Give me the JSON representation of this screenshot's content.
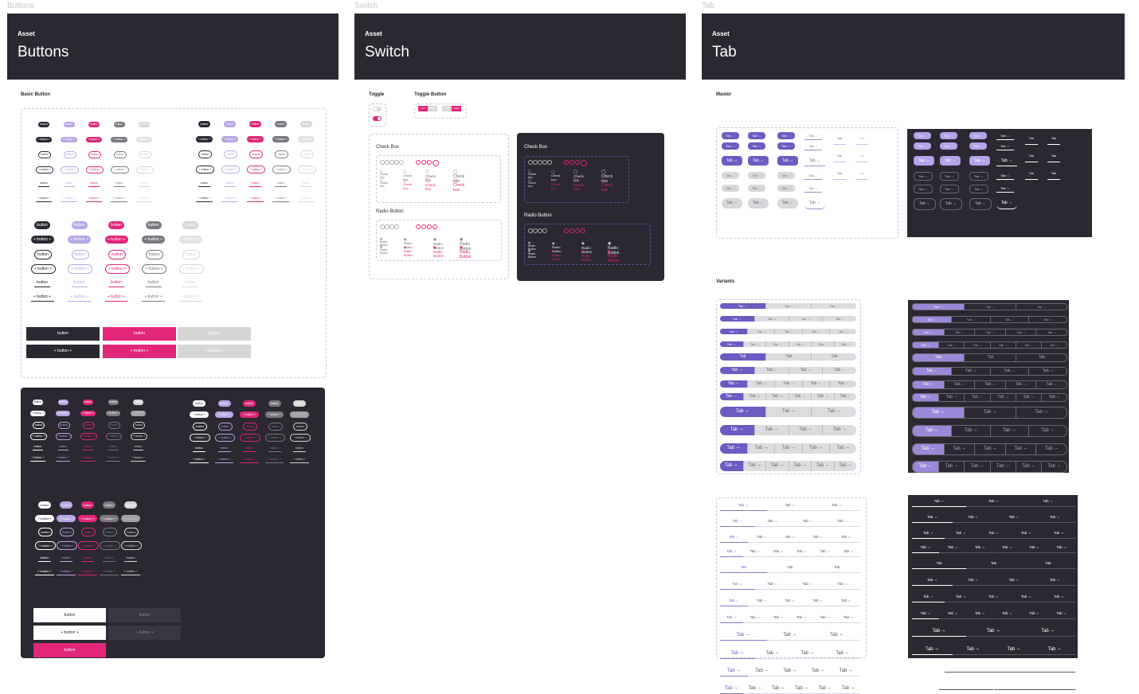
{
  "frames": {
    "buttons": "Buttons",
    "switch": "Switch",
    "tab": "Tab"
  },
  "headers": [
    {
      "kicker": "Asset",
      "title": "Buttons"
    },
    {
      "kicker": "Asset",
      "title": "Switch"
    },
    {
      "kicker": "Asset",
      "title": "Tab"
    }
  ],
  "buttons": {
    "section_basic": "Basic Button",
    "label": "button",
    "label_icons": "+ button +",
    "bar_label": "button"
  },
  "switch": {
    "toggle": "Toggle",
    "toggle_button": "Toggle Button",
    "left": "Left",
    "right": "Right",
    "checkbox_title": "Check Box",
    "radio_title": "Radio Button",
    "checkbox_label": "Check box",
    "radio_label": "Radio Button"
  },
  "tab": {
    "master": "Master",
    "variants": "Variants",
    "label": "Tab",
    "arrow": "Tab ⇔"
  },
  "colors": {
    "dark": "#2b2831",
    "purple": "#8a76c8",
    "light_purple": "#b8a6e6",
    "pink": "#e2267a",
    "gray": "#7b787f",
    "light_gray": "#d6d6d6"
  }
}
